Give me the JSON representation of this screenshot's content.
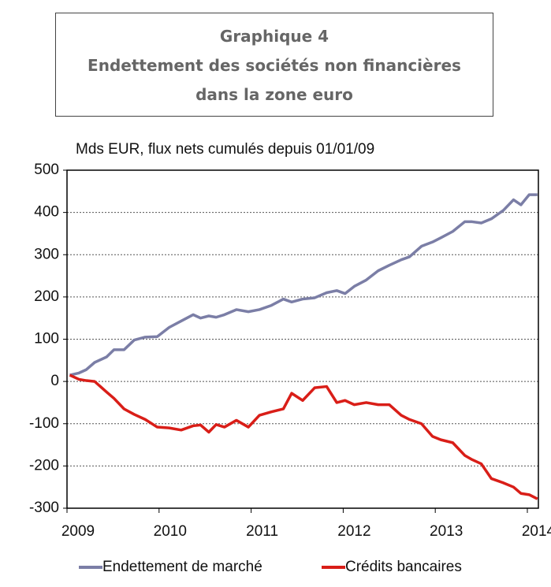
{
  "title_lines": [
    "Graphique 4",
    "Endettement des sociétés non financières",
    "dans la zone euro"
  ],
  "chart_data": {
    "type": "line",
    "subtitle": "Mds EUR, flux nets cumulés depuis 01/01/09",
    "x": [
      2009.03,
      2009.13,
      2009.21,
      2009.3,
      2009.43,
      2009.51,
      2009.62,
      2009.73,
      2009.85,
      2009.98,
      2010.11,
      2010.24,
      2010.37,
      2010.45,
      2010.54,
      2010.62,
      2010.71,
      2010.84,
      2010.97,
      2011.09,
      2011.22,
      2011.35,
      2011.44,
      2011.56,
      2011.69,
      2011.82,
      2011.93,
      2012.02,
      2012.12,
      2012.25,
      2012.38,
      2012.5,
      2012.63,
      2012.72,
      2012.85,
      2012.97,
      2013.06,
      2013.19,
      2013.32,
      2013.4,
      2013.5,
      2013.61,
      2013.74,
      2013.85,
      2013.93,
      2014.02,
      2014.11
    ],
    "series": [
      {
        "name": "Endettement de marché",
        "color": "#7b7ea6",
        "values": [
          15,
          20,
          28,
          45,
          58,
          75,
          75,
          98,
          105,
          106,
          128,
          143,
          158,
          150,
          155,
          152,
          158,
          170,
          165,
          170,
          180,
          195,
          188,
          195,
          198,
          210,
          215,
          208,
          225,
          240,
          262,
          275,
          288,
          295,
          320,
          330,
          340,
          355,
          378,
          378,
          375,
          385,
          405,
          430,
          418,
          442,
          442
        ]
      },
      {
        "name": "Crédits bancaires",
        "color": "#d91e18",
        "values": [
          15,
          5,
          2,
          0,
          -25,
          -40,
          -65,
          -78,
          -90,
          -108,
          -110,
          -115,
          -105,
          -103,
          -120,
          -102,
          -108,
          -92,
          -108,
          -80,
          -72,
          -65,
          -28,
          -45,
          -15,
          -12,
          -50,
          -45,
          -55,
          -50,
          -55,
          -55,
          -80,
          -90,
          -100,
          -130,
          -138,
          -145,
          -175,
          -185,
          -195,
          -230,
          -240,
          -250,
          -265,
          -268,
          -278
        ]
      }
    ],
    "xlim": [
      2009,
      2014.12
    ],
    "xticks": [
      2009,
      2010,
      2011,
      2012,
      2013,
      2014
    ],
    "ylim": [
      -300,
      500
    ],
    "yticks": [
      -300,
      -200,
      -100,
      0,
      100,
      200,
      300,
      400,
      500
    ],
    "grid": true,
    "legend": "bottom"
  }
}
